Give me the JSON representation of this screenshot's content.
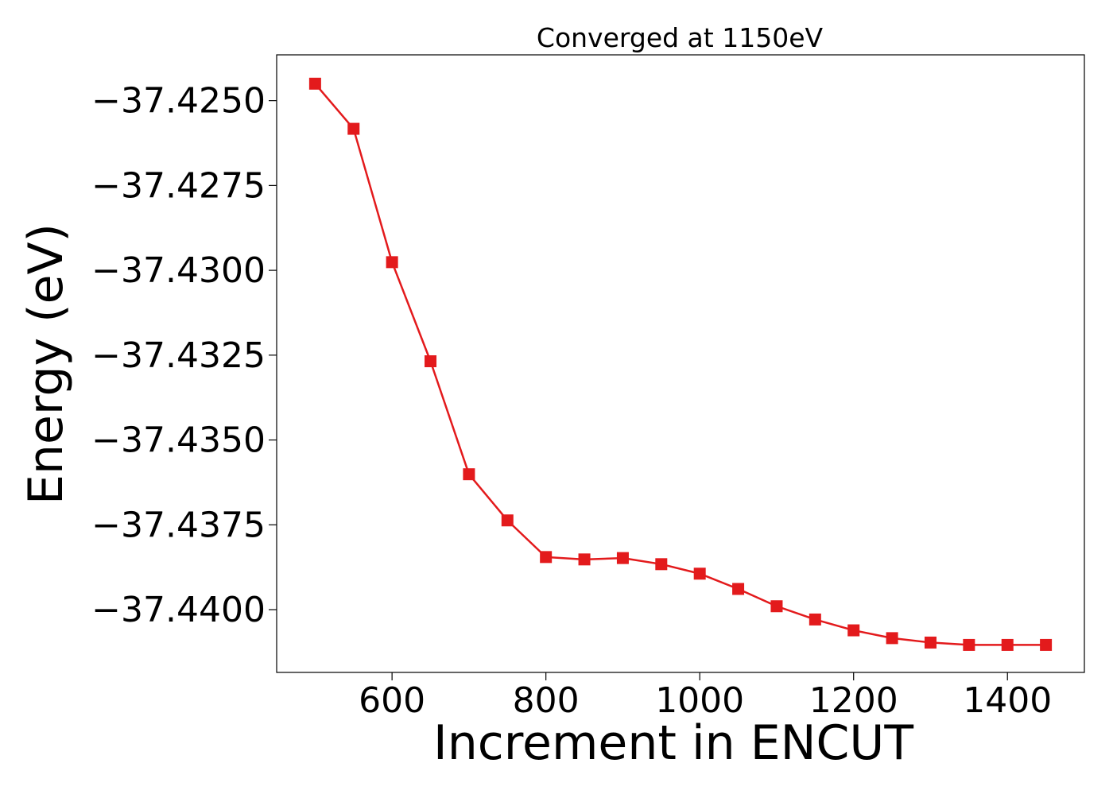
{
  "chart_data": {
    "type": "line",
    "title": "Converged at 1150eV",
    "xlabel": "Increment in ENCUT",
    "ylabel": "Energy (eV)",
    "xlim": [
      450,
      1500
    ],
    "ylim": [
      -37.44185,
      -37.42365
    ],
    "xticks": [
      600,
      800,
      1000,
      1200,
      1400
    ],
    "xtick_labels": [
      "600",
      "800",
      "1000",
      "1200",
      "1400"
    ],
    "yticks": [
      -37.425,
      -37.4275,
      -37.43,
      -37.4325,
      -37.435,
      -37.4375,
      -37.44
    ],
    "ytick_labels": [
      "−37.4250",
      "−37.4275",
      "−37.4300",
      "−37.4325",
      "−37.4350",
      "−37.4375",
      "−37.4400"
    ],
    "grid": false,
    "series": [
      {
        "color": "#e31a1c",
        "marker": "square",
        "x": [
          500,
          550,
          600,
          650,
          700,
          750,
          800,
          850,
          900,
          950,
          1000,
          1050,
          1100,
          1150,
          1200,
          1250,
          1300,
          1350,
          1400,
          1450
        ],
        "y": [
          -37.4245,
          -37.42583,
          -37.42976,
          -37.43268,
          -37.43601,
          -37.43737,
          -37.43845,
          -37.43852,
          -37.43848,
          -37.43866,
          -37.43894,
          -37.43939,
          -37.4399,
          -37.44029,
          -37.44061,
          -37.44084,
          -37.44097,
          -37.44104,
          -37.44104,
          -37.44104
        ]
      }
    ]
  }
}
